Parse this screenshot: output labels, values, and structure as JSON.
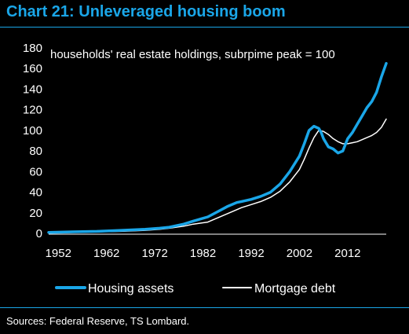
{
  "header": {
    "title": "Chart 21: Unleveraged housing boom"
  },
  "footer": {
    "source": "Sources: Federal Reserve, TS Lombard."
  },
  "colors": {
    "background": "#000000",
    "accent": "#1aa6e8",
    "text": "#ffffff",
    "series_assets": "#1aa6e8",
    "series_debt": "#ffffff"
  },
  "chart_data": {
    "type": "line",
    "title": "Chart 21: Unleveraged housing boom",
    "annotation": "households' real estate holdings, subrpime peak = 100",
    "xlabel": "",
    "ylabel": "",
    "xlim": [
      1950,
      2020
    ],
    "ylim": [
      0,
      180
    ],
    "xticks": [
      1952,
      1962,
      1972,
      1982,
      1992,
      2002,
      2012
    ],
    "yticks": [
      0,
      20,
      40,
      60,
      80,
      100,
      120,
      140,
      160,
      180
    ],
    "grid": false,
    "legend_position": "bottom",
    "series": [
      {
        "name": "Housing assets",
        "color": "#1aa6e8",
        "x": [
          1950,
          1955,
          1960,
          1965,
          1970,
          1973,
          1975,
          1978,
          1980,
          1983,
          1985,
          1987,
          1989,
          1990,
          1992,
          1994,
          1996,
          1998,
          2000,
          2002,
          2003,
          2004,
          2005,
          2006,
          2006.5,
          2007,
          2008,
          2009,
          2010,
          2011,
          2012,
          2013,
          2014,
          2015,
          2016,
          2017,
          2018,
          2019,
          2020
        ],
        "values": [
          1,
          1.5,
          2,
          3,
          4,
          5,
          6,
          9,
          12,
          16,
          21,
          26,
          30,
          31,
          33,
          36,
          40,
          48,
          60,
          75,
          87,
          100,
          104,
          102,
          98,
          92,
          84,
          82,
          78,
          80,
          92,
          98,
          106,
          114,
          122,
          128,
          137,
          152,
          165
        ]
      },
      {
        "name": "Mortgage debt",
        "color": "#ffffff",
        "x": [
          1950,
          1955,
          1960,
          1965,
          1970,
          1973,
          1975,
          1978,
          1980,
          1983,
          1985,
          1987,
          1989,
          1990,
          1992,
          1994,
          1996,
          1998,
          2000,
          2002,
          2003,
          2004,
          2005,
          2006,
          2007,
          2008,
          2009,
          2010,
          2011,
          2012,
          2013,
          2014,
          2015,
          2016,
          2017,
          2018,
          2019,
          2020
        ],
        "values": [
          0.5,
          1,
          1.5,
          2,
          3,
          4,
          5,
          7,
          9,
          11,
          15,
          19,
          23,
          25,
          28,
          31,
          35,
          41,
          50,
          62,
          72,
          83,
          93,
          100,
          99,
          96,
          92,
          89,
          87,
          87,
          88,
          89,
          91,
          93,
          95,
          98,
          103,
          111
        ]
      }
    ]
  }
}
